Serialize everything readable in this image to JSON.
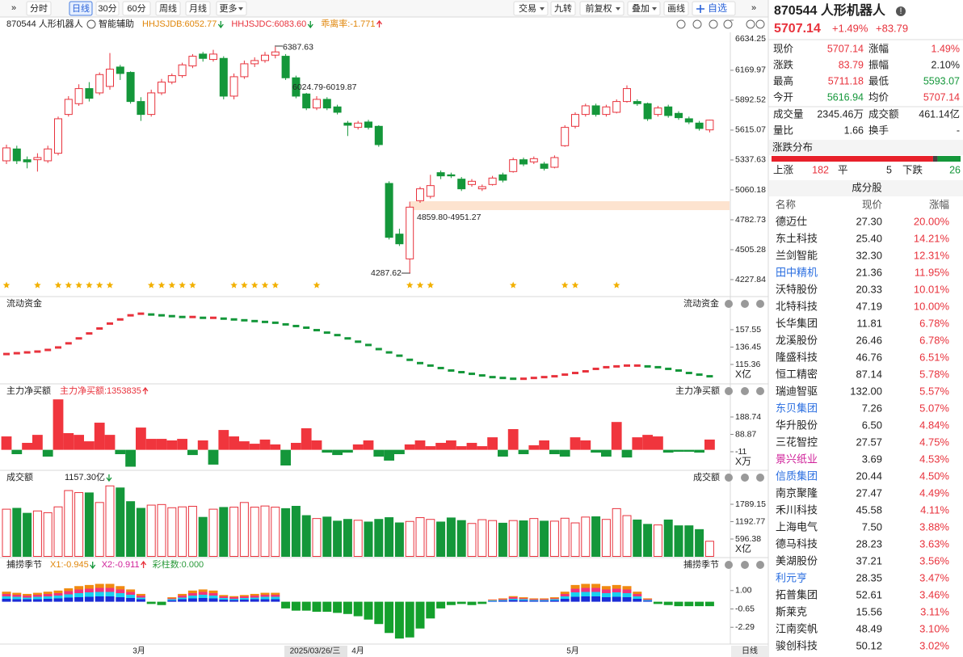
{
  "toolbar": {
    "left": [
      "分时",
      "日线",
      "30分",
      "60分",
      "周线",
      "月线",
      "更多"
    ],
    "active": 1,
    "right": [
      "交易",
      "九转",
      "前复权",
      "叠加",
      "画线",
      "自选"
    ]
  },
  "chart_header": {
    "name": "870544 人形机器人",
    "assist": "智能辅助",
    "indicators": [
      {
        "text": "HHJSJDB:6052.77",
        "color": "#e0860a",
        "arrow": "down"
      },
      {
        "text": "HHJSJDC:6083.60",
        "color": "#e8323c",
        "arrow": "down"
      },
      {
        "text": "乖离率:-1.771",
        "color": "#e0860a",
        "arrow": "up"
      }
    ]
  },
  "kline": {
    "ylim": [
      4227.84,
      6634.25
    ],
    "yticks": [
      6634.25,
      6169.97,
      5892.52,
      5615.07,
      5337.63,
      5060.18,
      4782.73,
      4505.28,
      4227.84
    ],
    "up_color": "#e8323c",
    "down_color": "#14973a",
    "open": [
      5330,
      5440,
      5340,
      5340,
      5330,
      5400,
      5760,
      5860,
      6000,
      5960,
      6020,
      6200,
      6150,
      5880,
      5760,
      5960,
      6060,
      6120,
      6210,
      6320,
      6270,
      6280,
      5930,
      6110,
      6230,
      6260,
      6310,
      6300,
      6100,
      5950,
      5820,
      5900,
      5830,
      5680,
      5640,
      5690,
      5650,
      5120,
      4650,
      4420,
      4960,
      5000,
      5220,
      5200,
      5160,
      5110,
      5070,
      5110,
      5200,
      5230,
      5340,
      5320,
      5300,
      5270,
      5470,
      5650,
      5760,
      5840,
      5760,
      5780,
      5880,
      5880,
      5860,
      5760,
      5830,
      5770,
      5720,
      5680,
      5616.94
    ],
    "close": [
      5450,
      5330,
      5320,
      5360,
      5440,
      5720,
      5900,
      6000,
      5910,
      6130,
      6180,
      6140,
      5880,
      5760,
      5960,
      6060,
      6120,
      6220,
      6300,
      6280,
      6320,
      5930,
      6110,
      6230,
      6260,
      6310,
      6340,
      6100,
      5930,
      5820,
      5900,
      5820,
      5780,
      5660,
      5680,
      5640,
      5480,
      4620,
      4560,
      4900,
      5070,
      5100,
      5190,
      5190,
      5070,
      5140,
      5090,
      5170,
      5150,
      5340,
      5300,
      5350,
      5260,
      5360,
      5640,
      5760,
      5840,
      5760,
      5830,
      5880,
      6000,
      5860,
      5720,
      5820,
      5750,
      5730,
      5690,
      5630,
      5707.14
    ],
    "high": [
      5480,
      5470,
      5370,
      5400,
      5470,
      5740,
      5930,
      6040,
      6060,
      6150,
      6330,
      6220,
      6160,
      5920,
      5990,
      6090,
      6140,
      6240,
      6320,
      6340,
      6360,
      6300,
      6140,
      6260,
      6290,
      6340,
      6387.63,
      6320,
      6120,
      5960,
      5930,
      5920,
      5850,
      5700,
      5700,
      5710,
      5660,
      5140,
      4700,
      4951.27,
      5090,
      5200,
      5240,
      5220,
      5180,
      5160,
      5110,
      5190,
      5220,
      5360,
      5360,
      5370,
      5320,
      5380,
      5660,
      5780,
      5860,
      5860,
      5850,
      5900,
      6030,
      5900,
      5870,
      5840,
      5850,
      5790,
      5740,
      5700,
      5711.18
    ],
    "low": [
      5300,
      5300,
      5260,
      5230,
      5310,
      5380,
      5740,
      5840,
      5880,
      5940,
      5990,
      6080,
      5860,
      5700,
      5740,
      5940,
      6040,
      6100,
      6190,
      6250,
      6250,
      5900,
      5900,
      6090,
      6200,
      6240,
      6280,
      6080,
      5910,
      5800,
      5800,
      5800,
      5760,
      5560,
      5620,
      5620,
      5460,
      4600,
      4540,
      4287.62,
      4940,
      4980,
      5160,
      5170,
      5050,
      5090,
      5050,
      5100,
      5130,
      5220,
      5280,
      5300,
      5240,
      5260,
      5460,
      5630,
      5740,
      5740,
      5740,
      5770,
      5870,
      5840,
      5700,
      5740,
      5730,
      5710,
      5670,
      5610,
      5593.07
    ],
    "annotations": [
      "6387.63",
      "6024.79-6019.87",
      "4859.80-4951.27",
      "4287.62"
    ],
    "stars": [
      0,
      3,
      5,
      6,
      7,
      8,
      9,
      10,
      14,
      15,
      16,
      17,
      18,
      22,
      23,
      24,
      25,
      26,
      30,
      39,
      40,
      41,
      49,
      54,
      55,
      59
    ]
  },
  "flow": {
    "title": "流动资金",
    "unit": "X亿",
    "ylim": [
      96.7,
      180.1
    ],
    "yticks": [
      157.55,
      136.45,
      115.36
    ],
    "values": [
      128,
      129,
      130,
      131,
      133,
      136,
      141,
      147,
      153,
      159,
      165,
      170,
      175,
      177,
      176,
      175,
      174,
      173,
      173,
      172,
      172,
      171,
      170,
      169,
      168,
      167,
      166,
      164,
      162,
      160,
      157,
      154,
      151,
      147,
      143,
      139,
      134,
      130,
      126,
      121,
      117,
      114,
      111,
      108,
      106,
      104,
      102,
      100,
      99,
      98,
      98,
      99,
      100,
      101,
      103,
      105,
      107,
      110,
      112,
      113,
      114,
      114,
      113,
      112,
      110,
      108,
      105,
      103,
      101
    ]
  },
  "netbuy": {
    "title": "主力净买额",
    "label": "主力净买额:1353835",
    "unit": "X万",
    "ylim": [
      -99.3,
      295.6
    ],
    "yticks": [
      188.74,
      88.87,
      -11.0
    ],
    "values": [
      77,
      -25,
      40,
      86,
      -39,
      290,
      96,
      86,
      49,
      156,
      86,
      -25,
      -97,
      128,
      63,
      63,
      54,
      63,
      -30,
      54,
      -85,
      114,
      77,
      49,
      35,
      59,
      31,
      -90,
      40,
      124,
      54,
      -16,
      -30,
      -16,
      31,
      54,
      -39,
      -62,
      -25,
      31,
      54,
      21,
      40,
      54,
      21,
      40,
      21,
      72,
      -39,
      119,
      -25,
      26,
      54,
      -25,
      -39,
      72,
      54,
      -16,
      -39,
      160,
      -44,
      72,
      86,
      77,
      -16,
      -11,
      -11,
      -16,
      59
    ]
  },
  "volume": {
    "title": "成交额",
    "label": "1157.30亿",
    "unit": "X亿",
    "ylim": [
      0,
      2454.9
    ],
    "yticks": [
      1789.15,
      1192.77,
      596.38
    ],
    "values": [
      1620,
      1650,
      1480,
      1560,
      1500,
      1700,
      2260,
      2190,
      2180,
      1850,
      2420,
      2350,
      1880,
      1650,
      1760,
      1780,
      1670,
      1700,
      1720,
      1340,
      1620,
      1680,
      1690,
      1850,
      1690,
      1730,
      1690,
      1640,
      1720,
      1400,
      1300,
      1350,
      1210,
      1270,
      1240,
      1180,
      1270,
      1330,
      1150,
      1200,
      1330,
      1270,
      1180,
      1320,
      1230,
      1130,
      1260,
      1230,
      1140,
      1230,
      1220,
      1300,
      1210,
      1210,
      1310,
      1150,
      1350,
      1360,
      1270,
      1640,
      1400,
      1250,
      1100,
      1080,
      1250,
      1050,
      1050,
      920,
      520
    ]
  },
  "season": {
    "title": "捕捞季节",
    "labels": [
      {
        "text": "X1:-0.945",
        "color": "#e0860a"
      },
      {
        "text": "X2:-0.911",
        "color": "#d0219a"
      },
      {
        "text": "彩柱数:0.000",
        "color": "#2a9a3a"
      }
    ],
    "ylim": [
      -3.65,
      2.65
    ],
    "yticks": [
      {
        "value": 1,
        "label": "1.00"
      },
      -0.65,
      -2.29
    ],
    "values": [
      0.9,
      0.8,
      0.7,
      0.8,
      0.9,
      1.0,
      1.2,
      1.4,
      1.5,
      1.6,
      1.6,
      1.4,
      1.1,
      0.7,
      -0.2,
      -0.3,
      0.4,
      0.7,
      1.0,
      1.1,
      1.0,
      0.6,
      0.5,
      0.6,
      0.7,
      0.8,
      0.8,
      -0.6,
      -0.8,
      -0.8,
      -0.9,
      -0.9,
      -1.0,
      -1.1,
      -1.3,
      -1.6,
      -2.0,
      -2.8,
      -3.3,
      -3.2,
      -2.4,
      -1.5,
      -0.6,
      -0.3,
      -0.2,
      -0.3,
      -0.2,
      0.2,
      0.3,
      0.5,
      0.4,
      0.3,
      0.3,
      0.4,
      0.9,
      1.5,
      1.6,
      1.6,
      1.4,
      1.5,
      1.4,
      0.9,
      0.3,
      -0.2,
      -0.3,
      -0.4,
      -0.4,
      -0.4,
      -0.4
    ]
  },
  "date_axis": [
    "3月",
    "2025/03/26/三",
    "4月",
    "5月",
    "日线"
  ],
  "quote": {
    "name": "870544 人形机器人",
    "price": "5707.14",
    "pct": "+1.49%",
    "chg": "+83.79",
    "stats": [
      [
        "现价",
        "5707.14",
        "涨幅",
        "1.49%"
      ],
      [
        "涨跌",
        "83.79",
        "振幅",
        "2.10%"
      ],
      [
        "最高",
        "5711.18",
        "最低",
        "5593.07"
      ],
      [
        "今开",
        "5616.94",
        "均价",
        "5707.14"
      ],
      [
        "成交量",
        "2345.46万",
        "成交额",
        "461.14亿"
      ],
      [
        "量比",
        "1.66",
        "换手",
        "-"
      ]
    ]
  },
  "distribution": {
    "title": "涨跌分布",
    "up_label": "上涨",
    "up": 182,
    "flat_label": "平",
    "flat": 5,
    "down_label": "下跌",
    "down": 26
  },
  "components": {
    "title": "成分股",
    "columns": [
      "名称",
      "现价",
      "涨幅"
    ],
    "rows": [
      {
        "name": "德迈仕",
        "price": "27.30",
        "pct": "20.00%"
      },
      {
        "name": "东土科技",
        "price": "25.40",
        "pct": "14.21%"
      },
      {
        "name": "兰剑智能",
        "price": "32.30",
        "pct": "12.31%"
      },
      {
        "name": "田中精机",
        "price": "21.36",
        "pct": "11.95%",
        "color": "#2a6ee0"
      },
      {
        "name": "沃特股份",
        "price": "20.33",
        "pct": "10.01%"
      },
      {
        "name": "北特科技",
        "price": "47.19",
        "pct": "10.00%"
      },
      {
        "name": "长华集团",
        "price": "11.81",
        "pct": "6.78%"
      },
      {
        "name": "龙溪股份",
        "price": "26.46",
        "pct": "6.78%"
      },
      {
        "name": "隆盛科技",
        "price": "46.76",
        "pct": "6.51%"
      },
      {
        "name": "恒工精密",
        "price": "87.14",
        "pct": "5.78%"
      },
      {
        "name": "瑞迪智驱",
        "price": "132.00",
        "pct": "5.57%"
      },
      {
        "name": "东贝集团",
        "price": "7.26",
        "pct": "5.07%",
        "color": "#2a6ee0"
      },
      {
        "name": "华升股份",
        "price": "6.50",
        "pct": "4.84%"
      },
      {
        "name": "三花智控",
        "price": "27.57",
        "pct": "4.75%"
      },
      {
        "name": "景兴纸业",
        "price": "3.69",
        "pct": "4.53%",
        "color": "#d0219a"
      },
      {
        "name": "信质集团",
        "price": "20.44",
        "pct": "4.50%",
        "color": "#2a6ee0"
      },
      {
        "name": "南京聚隆",
        "price": "27.47",
        "pct": "4.49%"
      },
      {
        "name": "禾川科技",
        "price": "45.58",
        "pct": "4.11%"
      },
      {
        "name": "上海电气",
        "price": "7.50",
        "pct": "3.88%"
      },
      {
        "name": "德马科技",
        "price": "28.23",
        "pct": "3.63%"
      },
      {
        "name": "美湖股份",
        "price": "37.21",
        "pct": "3.56%"
      },
      {
        "name": "利元亨",
        "price": "28.35",
        "pct": "3.47%",
        "color": "#2a6ee0"
      },
      {
        "name": "拓普集团",
        "price": "52.61",
        "pct": "3.46%"
      },
      {
        "name": "斯莱克",
        "price": "15.56",
        "pct": "3.11%"
      },
      {
        "name": "江南奕帆",
        "price": "48.49",
        "pct": "3.10%"
      },
      {
        "name": "骏创科技",
        "price": "50.12",
        "pct": "3.02%"
      }
    ]
  }
}
